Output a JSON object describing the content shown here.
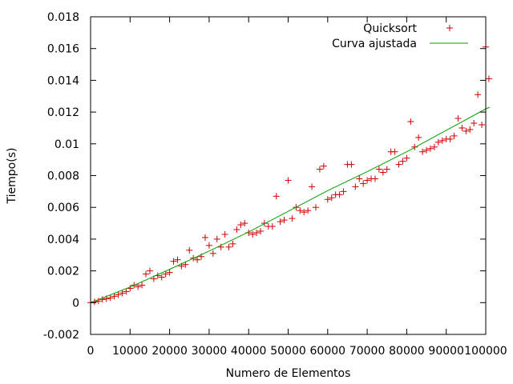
{
  "chart_data": {
    "type": "scatter",
    "title": "",
    "xlabel": "Numero de Elementos",
    "ylabel": "Tiempo(s)",
    "xlim": [
      0,
      100000
    ],
    "ylim": [
      -0.002,
      0.018
    ],
    "grid": false,
    "legend_position": "top-right",
    "x_ticks": [
      0,
      10000,
      20000,
      30000,
      40000,
      50000,
      60000,
      70000,
      80000,
      90000,
      100000
    ],
    "x_tick_labels": [
      "0",
      "10000",
      "20000",
      "30000",
      "40000",
      "50000",
      "60000",
      "70000",
      "80000",
      "90000",
      "100000"
    ],
    "y_ticks": [
      -0.002,
      0,
      0.002,
      0.004,
      0.006,
      0.008,
      0.01,
      0.012,
      0.014,
      0.016,
      0.018
    ],
    "y_tick_labels": [
      "-0.002",
      "0",
      "0.002",
      "0.004",
      "0.006",
      "0.008",
      "0.01",
      "0.012",
      "0.014",
      "0.016",
      "0.018"
    ],
    "series": [
      {
        "name": "Quicksort",
        "kind": "scatter",
        "marker": "plus",
        "color": "#cc0000",
        "points": [
          [
            0,
            0.0
          ],
          [
            1000,
            5e-05
          ],
          [
            2000,
            0.0001
          ],
          [
            3000,
            0.0002
          ],
          [
            4000,
            0.00025
          ],
          [
            5000,
            0.0003
          ],
          [
            6000,
            0.0004
          ],
          [
            7000,
            0.0005
          ],
          [
            8000,
            0.0006
          ],
          [
            9000,
            0.0007
          ],
          [
            10000,
            0.0009
          ],
          [
            11000,
            0.0011
          ],
          [
            12000,
            0.001
          ],
          [
            13000,
            0.0011
          ],
          [
            14000,
            0.0018
          ],
          [
            15000,
            0.002
          ],
          [
            16000,
            0.0015
          ],
          [
            17000,
            0.0017
          ],
          [
            18000,
            0.0016
          ],
          [
            19000,
            0.0018
          ],
          [
            20000,
            0.0019
          ],
          [
            21000,
            0.0026
          ],
          [
            22000,
            0.0027
          ],
          [
            23000,
            0.0023
          ],
          [
            24000,
            0.0024
          ],
          [
            25000,
            0.0033
          ],
          [
            26000,
            0.0028
          ],
          [
            27000,
            0.0027
          ],
          [
            28000,
            0.0029
          ],
          [
            29000,
            0.0041
          ],
          [
            30000,
            0.0036
          ],
          [
            31000,
            0.0031
          ],
          [
            32000,
            0.004
          ],
          [
            33000,
            0.0035
          ],
          [
            34000,
            0.0043
          ],
          [
            35000,
            0.0035
          ],
          [
            36000,
            0.0037
          ],
          [
            37000,
            0.0046
          ],
          [
            38000,
            0.0049
          ],
          [
            39000,
            0.005
          ],
          [
            40000,
            0.0044
          ],
          [
            41000,
            0.0043
          ],
          [
            42000,
            0.0044
          ],
          [
            43000,
            0.0045
          ],
          [
            44000,
            0.005
          ],
          [
            45000,
            0.0048
          ],
          [
            46000,
            0.0048
          ],
          [
            47000,
            0.0067
          ],
          [
            48000,
            0.0051
          ],
          [
            49000,
            0.0052
          ],
          [
            50000,
            0.0077
          ],
          [
            51000,
            0.0053
          ],
          [
            52000,
            0.006
          ],
          [
            53000,
            0.0058
          ],
          [
            54000,
            0.0057
          ],
          [
            55000,
            0.0058
          ],
          [
            56000,
            0.0073
          ],
          [
            57000,
            0.006
          ],
          [
            58000,
            0.0084
          ],
          [
            59000,
            0.0086
          ],
          [
            60000,
            0.0065
          ],
          [
            61000,
            0.0066
          ],
          [
            62000,
            0.0068
          ],
          [
            63000,
            0.0068
          ],
          [
            64000,
            0.007
          ],
          [
            65000,
            0.0087
          ],
          [
            66000,
            0.0087
          ],
          [
            67000,
            0.0073
          ],
          [
            68000,
            0.0078
          ],
          [
            69000,
            0.0075
          ],
          [
            70000,
            0.0077
          ],
          [
            71000,
            0.0078
          ],
          [
            72000,
            0.0078
          ],
          [
            73000,
            0.0084
          ],
          [
            74000,
            0.0082
          ],
          [
            75000,
            0.0084
          ],
          [
            76000,
            0.0095
          ],
          [
            77000,
            0.0095
          ],
          [
            78000,
            0.0087
          ],
          [
            79000,
            0.0089
          ],
          [
            80000,
            0.0091
          ],
          [
            81000,
            0.0114
          ],
          [
            82000,
            0.0098
          ],
          [
            83000,
            0.0104
          ],
          [
            84000,
            0.0095
          ],
          [
            85000,
            0.0096
          ],
          [
            86000,
            0.0097
          ],
          [
            87000,
            0.0098
          ],
          [
            88000,
            0.0101
          ],
          [
            89000,
            0.0102
          ],
          [
            90000,
            0.0103
          ],
          [
            91000,
            0.0103
          ],
          [
            92000,
            0.0105
          ],
          [
            93000,
            0.0116
          ],
          [
            94000,
            0.011
          ],
          [
            95000,
            0.0108
          ],
          [
            96000,
            0.0109
          ],
          [
            97000,
            0.0113
          ],
          [
            98000,
            0.0131
          ],
          [
            99000,
            0.0112
          ],
          [
            100000,
            0.0161
          ],
          [
            100800,
            0.0141
          ]
        ]
      },
      {
        "name": "Curva ajustada",
        "kind": "line",
        "color": "#00a000",
        "points": [
          [
            0,
            0.0
          ],
          [
            10000,
            0.00098
          ],
          [
            20000,
            0.0021
          ],
          [
            30000,
            0.00325
          ],
          [
            40000,
            0.00445
          ],
          [
            50000,
            0.00575
          ],
          [
            60000,
            0.00705
          ],
          [
            70000,
            0.00825
          ],
          [
            80000,
            0.0095
          ],
          [
            90000,
            0.01085
          ],
          [
            100000,
            0.0122
          ],
          [
            101000,
            0.0123
          ]
        ]
      }
    ]
  }
}
